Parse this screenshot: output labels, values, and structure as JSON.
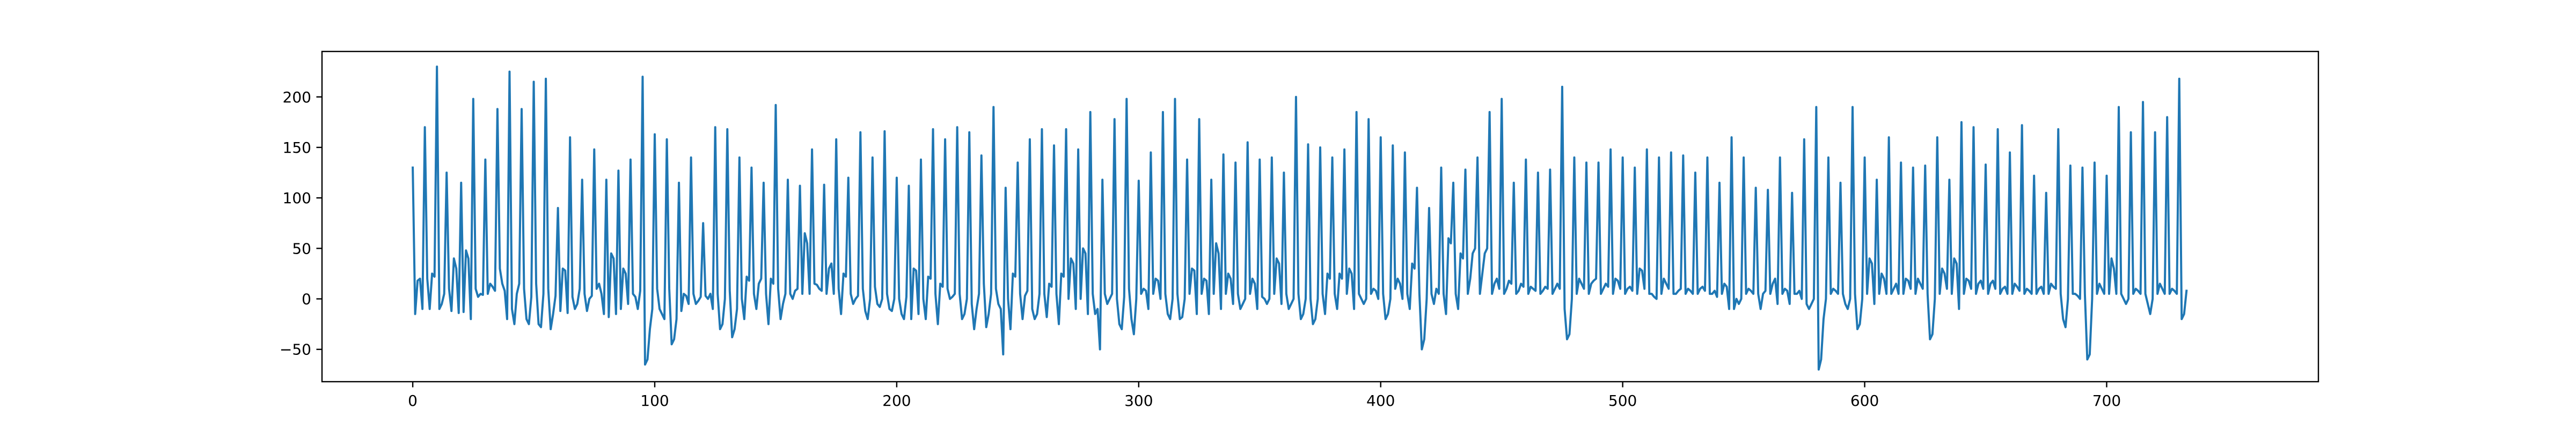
{
  "chart_data": {
    "type": "line",
    "title": "",
    "xlabel": "",
    "ylabel": "",
    "xlim": [
      -37.5,
      787.5
    ],
    "ylim": [
      -82,
      245
    ],
    "x_ticks": [
      0,
      100,
      200,
      300,
      400,
      500,
      600,
      700
    ],
    "y_ticks": [
      -50,
      0,
      50,
      100,
      150,
      200
    ],
    "grid": false,
    "legend": "none",
    "line_color": "#1f77b4",
    "series": [
      {
        "x_start": 0,
        "x_step": 1,
        "values": [
          130,
          -15,
          18,
          20,
          -10,
          170,
          20,
          -10,
          25,
          22,
          230,
          -10,
          -5,
          5,
          125,
          10,
          -12,
          40,
          30,
          -14,
          115,
          -13,
          48,
          40,
          -20,
          198,
          10,
          2,
          5,
          4,
          138,
          5,
          15,
          12,
          8,
          188,
          30,
          15,
          8,
          -20,
          225,
          -10,
          -25,
          5,
          15,
          188,
          10,
          -20,
          -25,
          2,
          215,
          15,
          -25,
          -28,
          5,
          218,
          10,
          -30,
          -15,
          3,
          90,
          -12,
          30,
          28,
          -14,
          160,
          2,
          -10,
          -5,
          10,
          118,
          5,
          -12,
          0,
          3,
          148,
          10,
          15,
          5,
          -15,
          118,
          -18,
          45,
          40,
          -15,
          127,
          -10,
          30,
          25,
          -5,
          138,
          5,
          2,
          -10,
          8,
          220,
          -65,
          -60,
          -30,
          -10,
          163,
          10,
          -10,
          -15,
          -20,
          158,
          10,
          -45,
          -40,
          -20,
          115,
          -12,
          5,
          3,
          -5,
          140,
          5,
          -5,
          -2,
          2,
          75,
          3,
          0,
          5,
          -10,
          170,
          5,
          -30,
          -25,
          0,
          168,
          8,
          -38,
          -30,
          -10,
          140,
          0,
          -20,
          22,
          18,
          130,
          5,
          -10,
          15,
          20,
          115,
          5,
          -25,
          20,
          15,
          192,
          10,
          -20,
          -5,
          5,
          118,
          5,
          0,
          8,
          10,
          112,
          5,
          65,
          55,
          5,
          148,
          15,
          14,
          10,
          8,
          113,
          5,
          30,
          35,
          5,
          158,
          10,
          -15,
          25,
          22,
          120,
          5,
          -5,
          0,
          3,
          165,
          10,
          -12,
          -20,
          0,
          140,
          12,
          -5,
          -8,
          0,
          166,
          5,
          -10,
          -12,
          0,
          120,
          0,
          -15,
          -20,
          2,
          112,
          -20,
          30,
          28,
          -15,
          138,
          0,
          -20,
          22,
          20,
          168,
          5,
          -25,
          15,
          12,
          158,
          10,
          0,
          2,
          5,
          170,
          5,
          -20,
          -15,
          0,
          165,
          -5,
          -30,
          -10,
          5,
          142,
          15,
          -28,
          -15,
          5,
          190,
          10,
          -5,
          -10,
          -55,
          110,
          0,
          -30,
          25,
          22,
          135,
          5,
          -20,
          3,
          8,
          158,
          -10,
          -20,
          -15,
          5,
          168,
          5,
          -18,
          15,
          12,
          152,
          5,
          -25,
          25,
          22,
          168,
          0,
          40,
          35,
          -10,
          148,
          0,
          50,
          45,
          -15,
          185,
          5,
          -15,
          -10,
          -50,
          118,
          5,
          -5,
          0,
          5,
          178,
          0,
          -25,
          -30,
          2,
          198,
          10,
          -20,
          -35,
          0,
          117,
          5,
          10,
          8,
          -10,
          145,
          5,
          20,
          18,
          0,
          185,
          5,
          -15,
          -20,
          0,
          198,
          5,
          -20,
          -18,
          0,
          138,
          5,
          30,
          28,
          -15,
          178,
          5,
          20,
          18,
          -15,
          118,
          5,
          55,
          45,
          -10,
          143,
          5,
          25,
          20,
          -5,
          135,
          5,
          -10,
          -5,
          0,
          155,
          5,
          20,
          15,
          -10,
          138,
          2,
          0,
          -5,
          0,
          140,
          5,
          40,
          35,
          -5,
          125,
          5,
          -10,
          -5,
          0,
          200,
          5,
          -20,
          -15,
          0,
          153,
          0,
          -25,
          -20,
          0,
          150,
          5,
          -15,
          25,
          20,
          140,
          5,
          -10,
          25,
          20,
          148,
          5,
          30,
          25,
          -10,
          185,
          5,
          0,
          -5,
          0,
          178,
          5,
          10,
          8,
          0,
          160,
          5,
          -20,
          -15,
          0,
          152,
          10,
          20,
          15,
          0,
          145,
          5,
          -10,
          35,
          30,
          110,
          5,
          -50,
          -40,
          0,
          90,
          5,
          -5,
          10,
          5,
          130,
          5,
          -15,
          60,
          55,
          115,
          5,
          -10,
          45,
          40,
          128,
          5,
          20,
          45,
          50,
          140,
          5,
          25,
          45,
          50,
          185,
          5,
          15,
          20,
          10,
          198,
          5,
          10,
          18,
          15,
          115,
          5,
          8,
          15,
          12,
          138,
          5,
          12,
          10,
          8,
          125,
          5,
          8,
          12,
          10,
          128,
          5,
          10,
          15,
          10,
          210,
          -10,
          -40,
          -35,
          0,
          140,
          5,
          20,
          15,
          10,
          135,
          5,
          15,
          18,
          20,
          135,
          5,
          10,
          15,
          12,
          148,
          5,
          20,
          18,
          10,
          140,
          5,
          10,
          12,
          8,
          130,
          5,
          30,
          28,
          10,
          148,
          5,
          5,
          2,
          0,
          140,
          5,
          20,
          15,
          10,
          145,
          5,
          5,
          8,
          10,
          142,
          5,
          10,
          8,
          5,
          125,
          5,
          10,
          12,
          8,
          140,
          5,
          5,
          8,
          2,
          115,
          5,
          15,
          12,
          -10,
          160,
          -10,
          0,
          -5,
          0,
          140,
          5,
          10,
          8,
          5,
          110,
          5,
          -10,
          5,
          8,
          108,
          5,
          15,
          20,
          -5,
          140,
          5,
          10,
          8,
          -5,
          105,
          5,
          5,
          8,
          0,
          158,
          -5,
          -10,
          -5,
          0,
          190,
          -70,
          -60,
          -20,
          0,
          140,
          5,
          10,
          8,
          5,
          115,
          5,
          -5,
          -10,
          0,
          190,
          5,
          -30,
          -25,
          0,
          140,
          5,
          40,
          35,
          -5,
          118,
          5,
          25,
          20,
          5,
          160,
          5,
          10,
          15,
          5,
          135,
          5,
          20,
          18,
          10,
          130,
          5,
          20,
          15,
          10,
          132,
          5,
          -40,
          -35,
          0,
          160,
          5,
          30,
          25,
          10,
          118,
          5,
          40,
          35,
          -10,
          175,
          5,
          20,
          18,
          10,
          170,
          5,
          15,
          18,
          10,
          133,
          5,
          15,
          18,
          10,
          168,
          5,
          10,
          12,
          5,
          145,
          5,
          15,
          12,
          8,
          172,
          5,
          10,
          8,
          5,
          122,
          5,
          10,
          12,
          5,
          105,
          5,
          15,
          12,
          10,
          168,
          5,
          -20,
          -28,
          0,
          132,
          5,
          5,
          3,
          0,
          130,
          5,
          -60,
          -55,
          0,
          135,
          5,
          15,
          10,
          5,
          122,
          5,
          40,
          30,
          5,
          190,
          5,
          0,
          -5,
          0,
          165,
          5,
          10,
          8,
          5,
          195,
          5,
          -5,
          -15,
          0,
          165,
          5,
          15,
          10,
          5,
          180,
          5,
          10,
          8,
          5,
          218,
          -20,
          -15,
          8
        ]
      }
    ]
  }
}
